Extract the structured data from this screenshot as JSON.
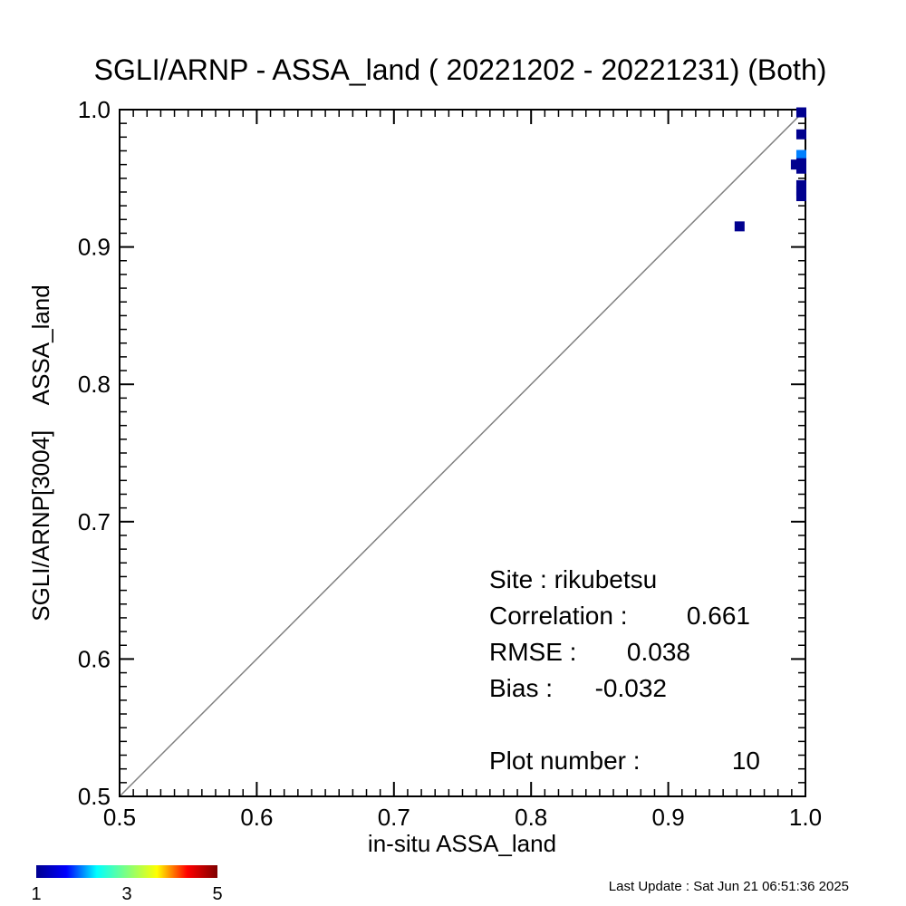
{
  "chart_data": {
    "type": "scatter",
    "title": "SGLI/ARNP - ASSA_land ( 20221202 - 20221231) (Both)",
    "xlabel": "in-situ ASSA_land",
    "ylabel": "SGLI/ARNP[3004]    ASSA_land",
    "xlim": [
      0.5,
      1.0
    ],
    "ylim": [
      0.5,
      1.0
    ],
    "xticks": [
      "0.5",
      "0.6",
      "0.7",
      "0.8",
      "0.9",
      "1.0"
    ],
    "yticks": [
      "0.5",
      "0.6",
      "0.7",
      "0.8",
      "0.9",
      "1.0"
    ],
    "one_to_one_line": true,
    "grid": false,
    "points": [
      {
        "x": 0.952,
        "y": 0.915,
        "count": 1
      },
      {
        "x": 0.993,
        "y": 0.96,
        "count": 1
      },
      {
        "x": 0.997,
        "y": 0.998,
        "count": 1
      },
      {
        "x": 0.997,
        "y": 0.982,
        "count": 1
      },
      {
        "x": 0.997,
        "y": 0.967,
        "count": 2
      },
      {
        "x": 0.997,
        "y": 0.961,
        "count": 1
      },
      {
        "x": 0.997,
        "y": 0.957,
        "count": 1
      },
      {
        "x": 0.997,
        "y": 0.945,
        "count": 1
      },
      {
        "x": 0.997,
        "y": 0.941,
        "count": 1
      },
      {
        "x": 0.997,
        "y": 0.937,
        "count": 1
      }
    ],
    "colorbar": {
      "min": 1,
      "max": 5,
      "tick_labels": [
        "1",
        "3",
        "5"
      ],
      "colors": [
        "#00008f",
        "#0000ff",
        "#00ffff",
        "#7fff7f",
        "#ffff00",
        "#ff0000",
        "#7f0000"
      ]
    },
    "stats": [
      {
        "label": "Site : rikubetsu",
        "value": ""
      },
      {
        "label": "Correlation :",
        "value": "0.661"
      },
      {
        "label": "RMSE :",
        "value": "0.038"
      },
      {
        "label": "Bias :",
        "value": "-0.032"
      },
      {
        "label": "Plot number :",
        "value": "10"
      }
    ]
  },
  "footer": {
    "last_update": "Last Update : Sat Jun 21 06:51:36 2025"
  }
}
